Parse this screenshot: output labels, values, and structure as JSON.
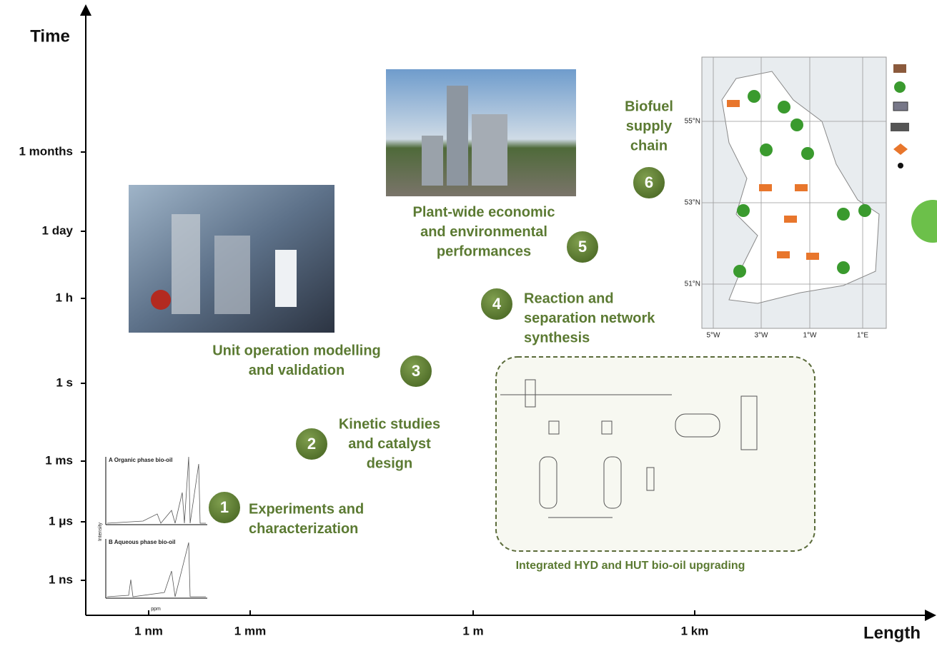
{
  "axes": {
    "y_title": "Time",
    "x_title": "Length",
    "y_ticks": [
      "1 months",
      "1 day",
      "1 h",
      "1 s",
      "1 ms",
      "1 μs",
      "1 ns"
    ],
    "x_ticks": [
      "1 nm",
      "1 mm",
      "1 m",
      "1 km"
    ]
  },
  "steps": [
    {
      "number": "1",
      "lines": [
        "Experiments and",
        "characterization"
      ]
    },
    {
      "number": "2",
      "lines": [
        "Kinetic studies",
        "and catalyst",
        "design"
      ]
    },
    {
      "number": "3",
      "lines": [
        "Unit operation modelling",
        "and validation"
      ]
    },
    {
      "number": "4",
      "lines": [
        "Reaction and",
        "separation network",
        "synthesis"
      ]
    },
    {
      "number": "5",
      "lines": [
        "Plant-wide economic",
        "and environmental",
        "performances"
      ]
    },
    {
      "number": "6",
      "lines": [
        "Biofuel",
        "supply",
        "chain"
      ]
    }
  ],
  "flowsheet_caption": "Integrated HYD and HUT bio-oil upgrading",
  "map": {
    "latitudes": [
      "55°N",
      "53°N",
      "51°N"
    ],
    "longitudes": [
      "5°W",
      "3°W",
      "1°W",
      "1°E"
    ]
  },
  "spectrum": {
    "panel_a": "A Organic phase bio-oil",
    "panel_b": "B Aqueous phase bio-oil",
    "x_label": "ppm",
    "y_label": "Intensity"
  }
}
